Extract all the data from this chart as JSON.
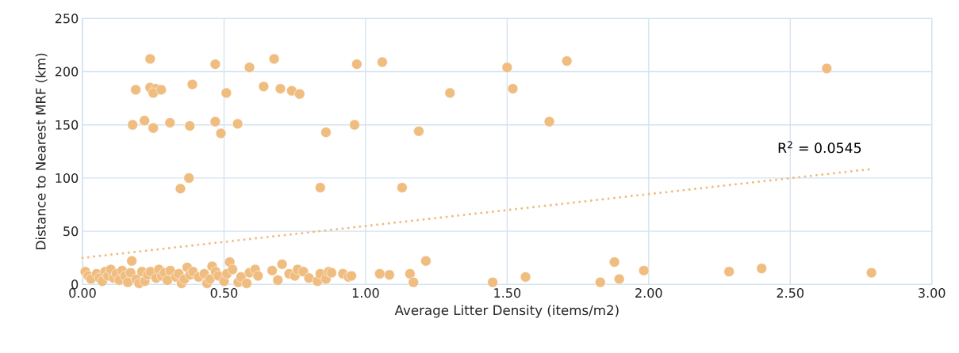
{
  "chart_data": {
    "type": "scatter",
    "xlabel": "Average Litter Density (items/m2)",
    "ylabel": "Distance to Nearest MRF (km)",
    "xlim": [
      0,
      3
    ],
    "ylim": [
      0,
      250
    ],
    "xticks": [
      {
        "value": 0,
        "label": "0.00"
      },
      {
        "value": 0.5,
        "label": "0.50"
      },
      {
        "value": 1,
        "label": "1.00"
      },
      {
        "value": 1.5,
        "label": "1.50"
      },
      {
        "value": 2,
        "label": "2.00"
      },
      {
        "value": 2.5,
        "label": "2.50"
      },
      {
        "value": 3,
        "label": "3.00"
      }
    ],
    "yticks": [
      0,
      50,
      100,
      150,
      200,
      250
    ],
    "grid": true,
    "marker": "circle",
    "annotations": [
      "R$^{2}$ = 0.0545"
    ],
    "series": [
      {
        "color": "#f0bd80",
        "x": [
          0.239,
          0.469,
          0.59,
          0.677,
          0.969,
          1.059,
          0.188,
          0.239,
          0.259,
          0.25,
          0.278,
          0.388,
          0.508,
          0.64,
          0.699,
          0.739,
          0.767,
          0.177,
          0.219,
          0.25,
          0.309,
          0.379,
          0.469,
          0.489,
          0.548,
          0.86,
          0.961,
          1.5,
          1.711,
          1.298,
          1.52,
          1.188,
          1.649,
          1.129,
          2.629,
          0.376,
          0.346,
          0.84,
          1.213,
          1.084,
          1.05,
          1.157,
          1.169,
          1.449,
          1.565,
          1.829,
          1.879,
          1.896,
          1.983,
          2.284,
          2.399,
          2.787,
          0.01,
          0.02,
          0.03,
          0.05,
          0.06,
          0.07,
          0.08,
          0.09,
          0.1,
          0.11,
          0.12,
          0.13,
          0.14,
          0.15,
          0.16,
          0.17,
          0.174,
          0.19,
          0.2,
          0.21,
          0.22,
          0.23,
          0.24,
          0.26,
          0.27,
          0.28,
          0.29,
          0.3,
          0.31,
          0.33,
          0.34,
          0.35,
          0.36,
          0.37,
          0.38,
          0.39,
          0.41,
          0.43,
          0.44,
          0.45,
          0.458,
          0.47,
          0.48,
          0.5,
          0.51,
          0.52,
          0.53,
          0.55,
          0.56,
          0.58,
          0.59,
          0.61,
          0.62,
          0.67,
          0.69,
          0.705,
          0.73,
          0.75,
          0.76,
          0.78,
          0.8,
          0.83,
          0.84,
          0.86,
          0.87,
          0.88,
          0.92,
          0.94,
          0.95
        ],
        "values": [
          212,
          207,
          204,
          212,
          207,
          209,
          183,
          185,
          184,
          180,
          183,
          188,
          180,
          186,
          184,
          182,
          179,
          150,
          154,
          147,
          152,
          149,
          153,
          142,
          151,
          143,
          150,
          204,
          210,
          180,
          184,
          144,
          153,
          91,
          203,
          100,
          90,
          91,
          22,
          9,
          10,
          10,
          2,
          2,
          7,
          2,
          21,
          5,
          13,
          12,
          15,
          11,
          12,
          8,
          5,
          10,
          6,
          3,
          12,
          8,
          14,
          6,
          10,
          4,
          13,
          8,
          2,
          11,
          22,
          5,
          1,
          12,
          3,
          9,
          12,
          6,
          14,
          8,
          11,
          4,
          13,
          7,
          10,
          1,
          5,
          16,
          9,
          12,
          7,
          10,
          1,
          5,
          17,
          12,
          8,
          3,
          10,
          21,
          14,
          2,
          7,
          1,
          11,
          14,
          8,
          13,
          4,
          19,
          10,
          8,
          14,
          12,
          6,
          3,
          10,
          5,
          12,
          11,
          10,
          7,
          8
        ]
      },
      {
        "type": "line",
        "color": "#f0bd80",
        "line_style": "dotted",
        "marker": "none",
        "x": [
          0,
          2.787
        ],
        "values": [
          25,
          108.5
        ]
      }
    ]
  }
}
